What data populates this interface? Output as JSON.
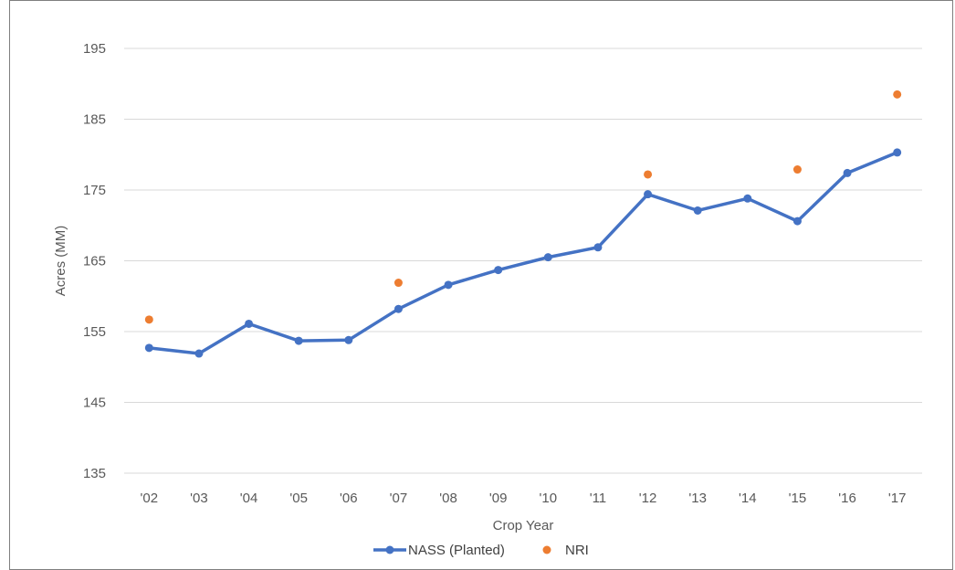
{
  "chart_data": {
    "type": "line",
    "xlabel": "Crop Year",
    "ylabel": "Acres (MM)",
    "ylim": [
      135,
      195
    ],
    "yticks": [
      "135",
      "145",
      "155",
      "165",
      "175",
      "185",
      "195"
    ],
    "grid": true,
    "legend_position": "bottom",
    "categories": [
      "'02",
      "'03",
      "'04",
      "'05",
      "'06",
      "'07",
      "'08",
      "'09",
      "'10",
      "'11",
      "'12",
      "'13",
      "'14",
      "'15",
      "'16",
      "'17"
    ],
    "series": [
      {
        "name": "NASS (Planted)",
        "style": "line-markers",
        "color": "#4472c4",
        "values": [
          152.7,
          151.9,
          156.1,
          153.7,
          153.8,
          158.2,
          161.6,
          163.7,
          165.5,
          166.9,
          174.4,
          172.1,
          173.8,
          170.6,
          177.4,
          180.3
        ]
      },
      {
        "name": "NRI",
        "style": "markers",
        "color": "#ed7d31",
        "values": [
          156.7,
          null,
          null,
          null,
          null,
          161.9,
          null,
          null,
          null,
          null,
          177.2,
          null,
          null,
          177.9,
          null,
          188.5
        ]
      }
    ]
  }
}
